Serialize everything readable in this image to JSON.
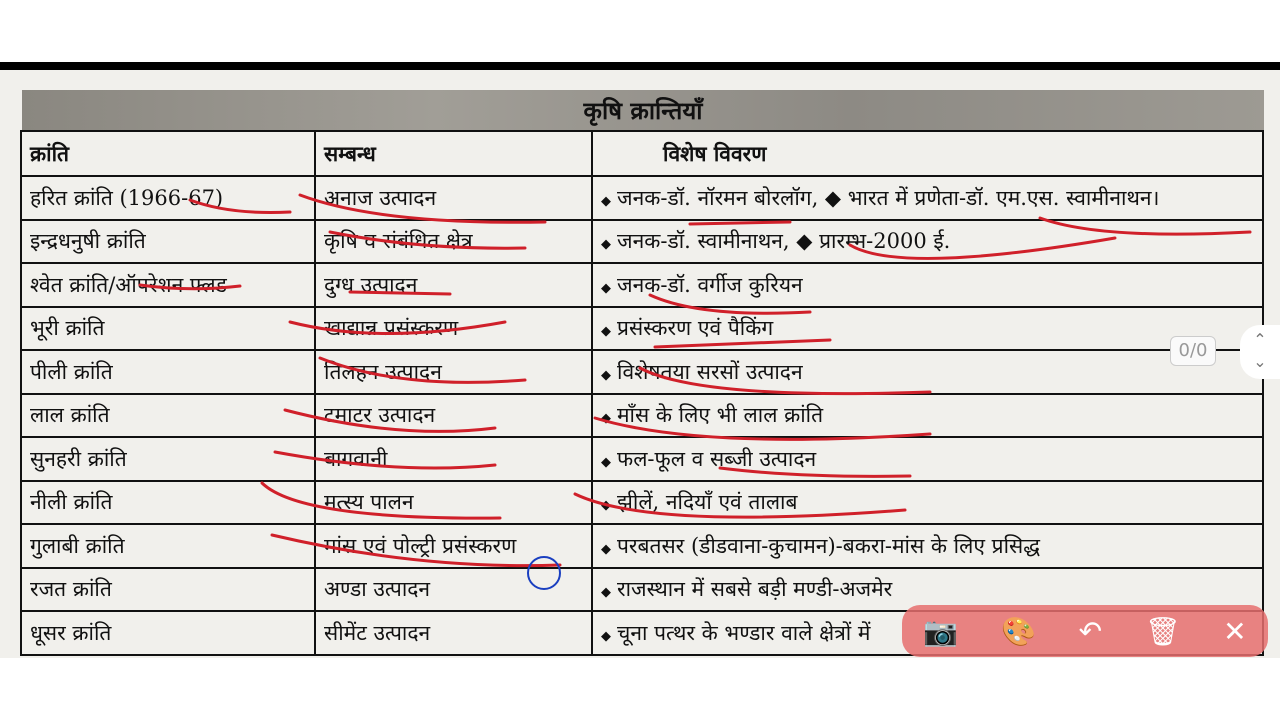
{
  "title": "कृषि क्रान्तियाँ",
  "headers": [
    "क्रांति",
    "सम्बन्ध",
    "विशेष विवरण"
  ],
  "rows": [
    {
      "k": "हरित क्रांति (1966-67)",
      "s": "अनाज उत्पादन",
      "v": "जनक-डॉ. नॉरमन बोरलॉग, ◆ भारत में प्रणेता-डॉ. एम.एस. स्वामीनाथन।"
    },
    {
      "k": "इन्द्रधनुषी क्रांति",
      "s": "कृषि व संबंधित क्षेत्र",
      "v": "जनक-डॉ. स्वामीनाथन, ◆ प्रारम्भ-2000 ई."
    },
    {
      "k": "श्वेत क्रांति/ऑपरेशन फ्लड",
      "s": "दुग्ध उत्पादन",
      "v": "जनक-डॉ. वर्गीज कुरियन"
    },
    {
      "k": "भूरी क्रांति",
      "s": "खाद्यान्न प्रसंस्करण",
      "v": "प्रसंस्करण एवं पैकिंग"
    },
    {
      "k": "पीली क्रांति",
      "s": "तिलहन उत्पादन",
      "v": "विशेषतया सरसों उत्पादन"
    },
    {
      "k": "लाल क्रांति",
      "s": "टमाटर उत्पादन",
      "v": "माँस के लिए भी लाल क्रांति"
    },
    {
      "k": "सुनहरी क्रांति",
      "s": "बागवानी",
      "v": "फल-फूल व सब्जी उत्पादन"
    },
    {
      "k": "नीली क्रांति",
      "s": "मत्स्य पालन",
      "v": "झीलें, नदियाँ एवं तालाब"
    },
    {
      "k": "गुलाबी क्रांति",
      "s": "मांस एवं पोल्ट्री प्रसंस्करण",
      "v": "परबतसर (डीडवाना-कुचामन)-बकरा-मांस के लिए प्रसिद्ध"
    },
    {
      "k": "रजत क्रांति",
      "s": "अण्डा उत्पादन",
      "v": "राजस्थान में सबसे बड़ी मण्डी-अजमेर"
    },
    {
      "k": "धूसर क्रांति",
      "s": "सीमेंट उत्पादन",
      "v": "चूना पत्थर के भण्डार वाले क्षेत्रों में"
    }
  ],
  "bullet": "◆",
  "search_count": "0/0",
  "nav": {
    "up": "⌃",
    "down": "⌄"
  },
  "toolbar": {
    "screenshot": "📷",
    "palette": "🎨",
    "undo": "↶",
    "delete": "🗑",
    "close": "✕"
  },
  "colors": {
    "ink": "#d0202a",
    "toolbar": "#e66e6e"
  }
}
